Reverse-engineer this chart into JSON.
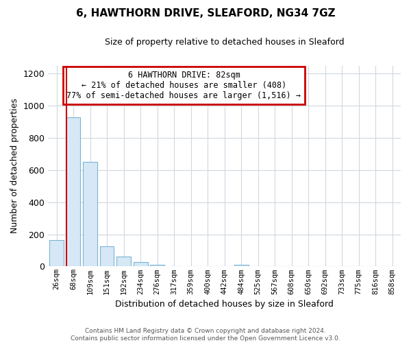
{
  "title": "6, HAWTHORN DRIVE, SLEAFORD, NG34 7GZ",
  "subtitle": "Size of property relative to detached houses in Sleaford",
  "xlabel": "Distribution of detached houses by size in Sleaford",
  "ylabel": "Number of detached properties",
  "bar_labels": [
    "26sqm",
    "68sqm",
    "109sqm",
    "151sqm",
    "192sqm",
    "234sqm",
    "276sqm",
    "317sqm",
    "359sqm",
    "400sqm",
    "442sqm",
    "484sqm",
    "525sqm",
    "567sqm",
    "608sqm",
    "650sqm",
    "692sqm",
    "733sqm",
    "775sqm",
    "816sqm",
    "858sqm"
  ],
  "bar_values": [
    163,
    930,
    650,
    127,
    62,
    28,
    12,
    0,
    0,
    0,
    0,
    12,
    0,
    0,
    0,
    0,
    0,
    0,
    0,
    0,
    0
  ],
  "bar_fill_color": "#d6e8f5",
  "bar_edge_color": "#7ab3d4",
  "marker_color": "#cc0000",
  "ylim": [
    0,
    1250
  ],
  "yticks": [
    0,
    200,
    400,
    600,
    800,
    1000,
    1200
  ],
  "annotation_title": "6 HAWTHORN DRIVE: 82sqm",
  "annotation_line1": "← 21% of detached houses are smaller (408)",
  "annotation_line2": "77% of semi-detached houses are larger (1,516) →",
  "annotation_box_color": "#ffffff",
  "annotation_box_edge": "#cc0000",
  "footer_line1": "Contains HM Land Registry data © Crown copyright and database right 2024.",
  "footer_line2": "Contains public sector information licensed under the Open Government Licence v3.0.",
  "bg_color": "#ffffff",
  "grid_color": "#d0d8e0",
  "marker_bar_index": 1,
  "marker_position": "left_edge"
}
